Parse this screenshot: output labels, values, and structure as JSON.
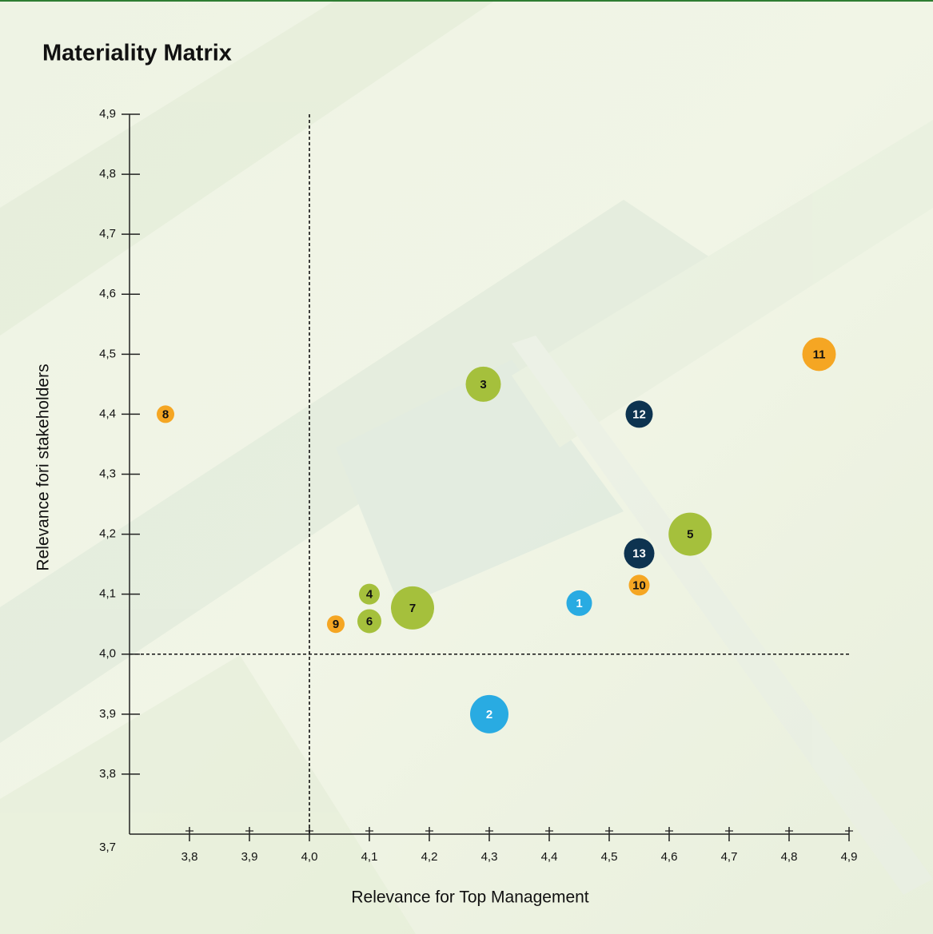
{
  "chart_data": {
    "type": "bubble",
    "title": "Materiality Matrix",
    "x_label": "Relevance for Top Management",
    "y_label": "Relevance fori stakeholders",
    "xlim": [
      3.7,
      4.9
    ],
    "ylim": [
      3.7,
      4.9
    ],
    "xticks": [
      {
        "value": 3.8,
        "label": "3,8"
      },
      {
        "value": 3.9,
        "label": "3,9"
      },
      {
        "value": 4.0,
        "label": "4,0"
      },
      {
        "value": 4.1,
        "label": "4,1"
      },
      {
        "value": 4.2,
        "label": "4,2"
      },
      {
        "value": 4.3,
        "label": "4,3"
      },
      {
        "value": 4.4,
        "label": "4,4"
      },
      {
        "value": 4.5,
        "label": "4,5"
      },
      {
        "value": 4.6,
        "label": "4,6"
      },
      {
        "value": 4.7,
        "label": "4,7"
      },
      {
        "value": 4.8,
        "label": "4,8"
      },
      {
        "value": 4.9,
        "label": "4,9"
      }
    ],
    "yticks": [
      {
        "value": 3.7,
        "label": "3,7"
      },
      {
        "value": 3.8,
        "label": "3,8"
      },
      {
        "value": 3.9,
        "label": "3,9"
      },
      {
        "value": 4.0,
        "label": "4,0"
      },
      {
        "value": 4.1,
        "label": "4,1"
      },
      {
        "value": 4.2,
        "label": "4,2"
      },
      {
        "value": 4.3,
        "label": "4,3"
      },
      {
        "value": 4.4,
        "label": "4,4"
      },
      {
        "value": 4.5,
        "label": "4,5"
      },
      {
        "value": 4.6,
        "label": "4,6"
      },
      {
        "value": 4.7,
        "label": "4,7"
      },
      {
        "value": 4.8,
        "label": "4,8"
      },
      {
        "value": 4.9,
        "label": "4,9"
      }
    ],
    "x_reference": 4.0,
    "y_reference": 4.0,
    "points": [
      {
        "label": "1",
        "x": 4.45,
        "y": 4.085,
        "size": 16,
        "color": "#29abe2"
      },
      {
        "label": "2",
        "x": 4.3,
        "y": 3.9,
        "size": 24,
        "color": "#29abe2"
      },
      {
        "label": "3",
        "x": 4.29,
        "y": 4.45,
        "size": 22,
        "color": "#a5c03c"
      },
      {
        "label": "4",
        "x": 4.1,
        "y": 4.1,
        "size": 13,
        "color": "#a5c03c"
      },
      {
        "label": "5",
        "x": 4.635,
        "y": 4.2,
        "size": 27,
        "color": "#a5c03c"
      },
      {
        "label": "6",
        "x": 4.1,
        "y": 4.055,
        "size": 15,
        "color": "#a5c03c"
      },
      {
        "label": "7",
        "x": 4.172,
        "y": 4.077,
        "size": 27,
        "color": "#a5c03c"
      },
      {
        "label": "8",
        "x": 3.76,
        "y": 4.4,
        "size": 11,
        "color": "#f5a623"
      },
      {
        "label": "9",
        "x": 4.044,
        "y": 4.05,
        "size": 11,
        "color": "#f5a623"
      },
      {
        "label": "10",
        "x": 4.55,
        "y": 4.115,
        "size": 13,
        "color": "#f5a623"
      },
      {
        "label": "11",
        "x": 4.85,
        "y": 4.5,
        "size": 21,
        "color": "#f5a623"
      },
      {
        "label": "12",
        "x": 4.55,
        "y": 4.4,
        "size": 17,
        "color": "#0d3350"
      },
      {
        "label": "13",
        "x": 4.55,
        "y": 4.168,
        "size": 19,
        "color": "#0d3350"
      }
    ]
  }
}
